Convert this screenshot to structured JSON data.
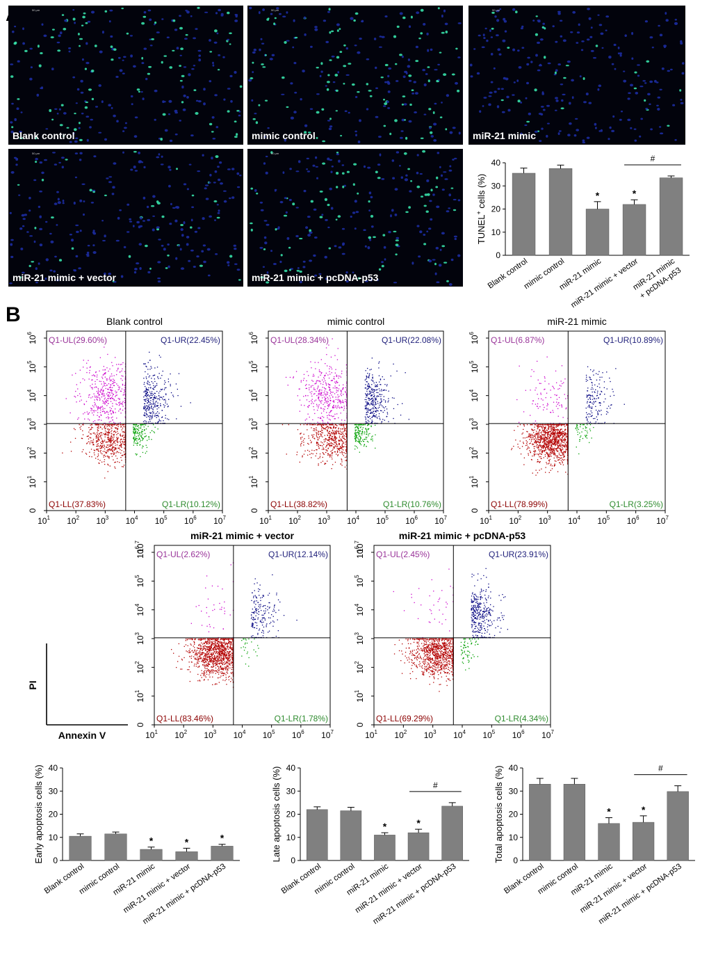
{
  "panel_a": {
    "letter": "A",
    "images": [
      {
        "label": "Blank control",
        "green_density": 0.55
      },
      {
        "label": "mimic control",
        "green_density": 0.65
      },
      {
        "label": "miR-21 mimic",
        "green_density": 0.25
      },
      {
        "label": "miR-21 mimic + vector",
        "green_density": 0.3
      },
      {
        "label": "miR-21 mimic + pcDNA-p53",
        "green_density": 0.55
      }
    ],
    "scale_text": "50 μm"
  },
  "panel_b": {
    "letter": "B",
    "axis_legend": {
      "y": "PI",
      "x": "Annexin V"
    },
    "flow_plots": [
      {
        "title": "Blank control",
        "quadrants": {
          "ul": "Q1-UL(29.60%)",
          "ur": "Q1-UR(22.45%)",
          "ll": "Q1-LL(37.83%)",
          "lr": "Q1-LR(10.12%)"
        },
        "percent": {
          "ul": 29.6,
          "ur": 22.45,
          "ll": 37.83,
          "lr": 10.12
        }
      },
      {
        "title": "mimic control",
        "quadrants": {
          "ul": "Q1-UL(28.34%)",
          "ur": "Q1-UR(22.08%)",
          "ll": "Q1-LL(38.82%)",
          "lr": "Q1-LR(10.76%)"
        },
        "percent": {
          "ul": 28.34,
          "ur": 22.08,
          "ll": 38.82,
          "lr": 10.76
        }
      },
      {
        "title": "miR-21 mimic",
        "quadrants": {
          "ul": "Q1-UL(6.87%)",
          "ur": "Q1-UR(10.89%)",
          "ll": "Q1-LL(78.99%)",
          "lr": "Q1-LR(3.25%)"
        },
        "percent": {
          "ul": 6.87,
          "ur": 10.89,
          "ll": 78.99,
          "lr": 3.25
        }
      },
      {
        "title": "miR-21 mimic + vector",
        "quadrants": {
          "ul": "Q1-UL(2.62%)",
          "ur": "Q1-UR(12.14%)",
          "ll": "Q1-LL(83.46%)",
          "lr": "Q1-LR(1.78%)"
        },
        "percent": {
          "ul": 2.62,
          "ur": 12.14,
          "ll": 83.46,
          "lr": 1.78
        }
      },
      {
        "title": "miR-21 mimic + pcDNA-p53",
        "quadrants": {
          "ul": "Q1-UL(2.45%)",
          "ur": "Q1-UR(23.91%)",
          "ll": "Q1-LL(69.29%)",
          "lr": "Q1-LR(4.34%)"
        },
        "percent": {
          "ul": 2.45,
          "ur": 23.91,
          "ll": 69.29,
          "lr": 4.34
        }
      }
    ],
    "flow_axis": {
      "x_ticks": [
        "10",
        "10",
        "10",
        "10",
        "10",
        "10",
        "10"
      ],
      "x_exps": [
        "1",
        "2",
        "3",
        "4",
        "5",
        "6",
        "7"
      ],
      "y_ticks": [
        "0",
        "10",
        "10",
        "10",
        "10",
        "10",
        "10"
      ],
      "y_exps": [
        "",
        "1",
        "2",
        "3",
        "4",
        "5",
        "6"
      ],
      "top_tick": "10",
      "top_exp": "7"
    }
  },
  "chart_data": [
    {
      "type": "bar",
      "title": "",
      "ylabel": "TUNEL+ cells (%)",
      "ylabel_main": "TUNEL",
      "ylabel_sup": "+",
      "ylabel_tail": " cells (%)",
      "categories": [
        "Blank control",
        "mimic control",
        "miR-21 mimic",
        "miR-21 mimic + vector",
        "miR-21 mimic"
      ],
      "category_line2": [
        "",
        "",
        "",
        "",
        "+ pcDNA-p53"
      ],
      "values": [
        35.5,
        37.5,
        20.0,
        22.0,
        33.5
      ],
      "errors": [
        2.2,
        1.5,
        3.2,
        2.0,
        0.8
      ],
      "significance": [
        "",
        "",
        "*",
        "*",
        ""
      ],
      "bracket": {
        "from": 3,
        "to": 4,
        "label": "#"
      },
      "ylim": [
        0,
        40
      ],
      "yticks": [
        0,
        10,
        20,
        30,
        40
      ]
    },
    {
      "type": "bar",
      "title": "",
      "ylabel": "Early apoptosis cells (%)",
      "categories": [
        "Blank control",
        "mimic control",
        "miR-21 mimic",
        "miR-21 mimic + vector",
        "miR-21 mimic + pcDNA-p53"
      ],
      "values": [
        10.5,
        11.5,
        4.8,
        3.8,
        6.2
      ],
      "errors": [
        1.0,
        0.8,
        1.0,
        1.5,
        0.8
      ],
      "significance": [
        "",
        "",
        "*",
        "*",
        "*"
      ],
      "ylim": [
        0,
        40
      ],
      "yticks": [
        0,
        10,
        20,
        30,
        40
      ]
    },
    {
      "type": "bar",
      "title": "",
      "ylabel": "Late apoptosis cells (%)",
      "categories": [
        "Blank control",
        "mimic control",
        "miR-21 mimic",
        "miR-21 mimic + vector",
        "miR-21 mimic + pcDNA-p53"
      ],
      "values": [
        22.0,
        21.5,
        11.0,
        12.0,
        23.5
      ],
      "errors": [
        1.2,
        1.5,
        1.0,
        1.5,
        1.5
      ],
      "significance": [
        "",
        "",
        "*",
        "*",
        ""
      ],
      "bracket": {
        "from": 3,
        "to": 4,
        "label": "#"
      },
      "ylim": [
        0,
        40
      ],
      "yticks": [
        0,
        10,
        20,
        30,
        40
      ]
    },
    {
      "type": "bar",
      "title": "",
      "ylabel": "Total apoptosis cells (%)",
      "categories": [
        "Blank control",
        "mimic control",
        "miR-21 mimic",
        "miR-21 mimic + vector",
        "miR-21 mimic + pcDNA-p53"
      ],
      "values": [
        33.0,
        33.0,
        16.0,
        16.5,
        29.8
      ],
      "errors": [
        2.5,
        2.5,
        2.5,
        2.8,
        2.5
      ],
      "significance": [
        "",
        "",
        "*",
        "*",
        ""
      ],
      "bracket": {
        "from": 3,
        "to": 4,
        "label": "#"
      },
      "ylim": [
        0,
        40
      ],
      "yticks": [
        0,
        10,
        20,
        30,
        40
      ]
    }
  ],
  "colors": {
    "bar": "#808080",
    "ul": "#cc00cc",
    "ur": "#00007f",
    "ll": "#b30000",
    "lr": "#00a000",
    "ul_text": "#993399",
    "ur_text": "#1f1f7a",
    "ll_text": "#8b0000",
    "lr_text": "#2e8b2e",
    "nuclei_blue": "#1a2a9a",
    "nuclei_green": "#36e0a8"
  }
}
